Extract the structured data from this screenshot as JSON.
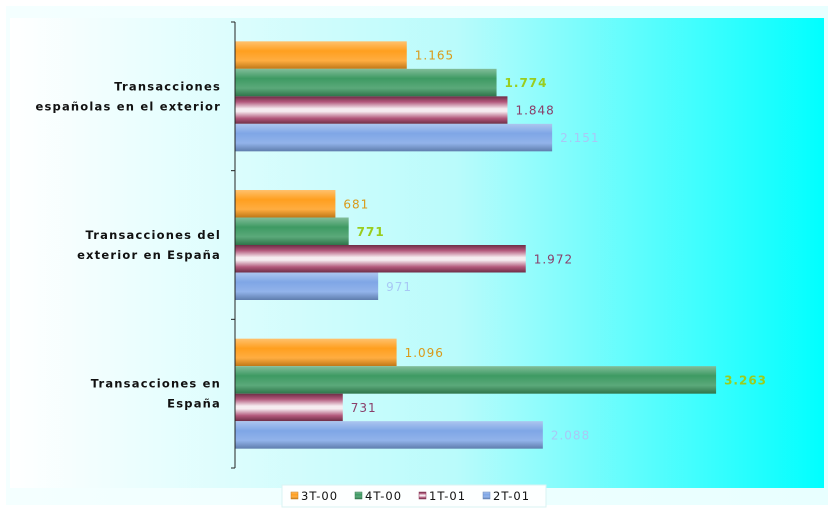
{
  "chart_data": {
    "type": "bar",
    "orientation": "horizontal",
    "categories": [
      "Transacciones españolas en el exterior",
      "Transacciones del exterior en España",
      "Transacciones en España"
    ],
    "category_label_lines": [
      [
        "Transacciones",
        "españolas en el exterior"
      ],
      [
        "Transacciones del",
        "exterior en España"
      ],
      [
        "Transacciones en",
        "España"
      ]
    ],
    "series": [
      {
        "name": "3T-00",
        "values": [
          1165,
          681,
          1096
        ],
        "labels": [
          "1.165",
          "681",
          "1.096"
        ]
      },
      {
        "name": "4T-00",
        "values": [
          1774,
          771,
          3263
        ],
        "labels": [
          "1.774",
          "771",
          "3.263"
        ]
      },
      {
        "name": "1T-01",
        "values": [
          1848,
          1972,
          731
        ],
        "labels": [
          "1.848",
          "1.972",
          "731"
        ]
      },
      {
        "name": "2T-01",
        "values": [
          2151,
          971,
          2088
        ],
        "labels": [
          "2.151",
          "971",
          "2.088"
        ]
      }
    ],
    "xlim": [
      0,
      3900
    ],
    "grid": false,
    "legend": "bottom",
    "colors": {
      "3T-00": "#ff9f1f",
      "4T-00": "#3e9a63",
      "1T-01": "#a9456c",
      "2T-01": "#7fa6e6"
    },
    "label_colors": {
      "3T-00": "#d99a1a",
      "4T-00": "#9acd1e",
      "1T-01": "#8a3f6a",
      "2T-01": "#a8c8f5"
    },
    "background_gradient": [
      "#ffffff",
      "#00ffff"
    ]
  }
}
